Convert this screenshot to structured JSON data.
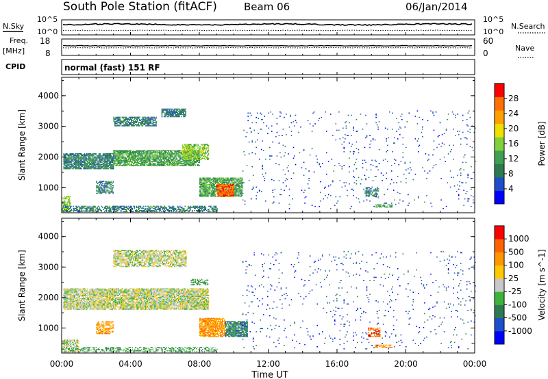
{
  "header": {
    "station": "South Pole Station (fitACF)",
    "beam": "Beam 06",
    "date": "06/Jan/2014"
  },
  "status_panels": {
    "nsky_label": "N.Sky",
    "nsky_ticks": [
      "10^5",
      "10^0"
    ],
    "nsearch_label": "N.Search",
    "nsearch_ticks": [
      "10^5",
      "10^0"
    ],
    "freq_label": "Freq.",
    "freq_unit": "[MHz]",
    "freq_ticks": [
      "18",
      "8"
    ],
    "nave_label": "Nave",
    "nave_ticks": [
      "60",
      "0"
    ],
    "cpid_label": "CPID",
    "cpid_text": "normal (fast) 151 RF"
  },
  "chart_data": [
    {
      "type": "heatmap",
      "name": "power",
      "ylabel": "Slant Range [km]",
      "yticks": [
        "4000",
        "3000",
        "2000",
        "1000"
      ],
      "ylim": [
        180,
        4600
      ],
      "xticks": [
        "00:00",
        "04:00",
        "08:00",
        "12:00",
        "16:00",
        "20:00",
        "00:00"
      ],
      "xlim_hours": [
        0,
        24
      ],
      "colorbar": {
        "label": "Power [dB]",
        "ticks": [
          "28",
          "24",
          "20",
          "16",
          "12",
          "8",
          "4"
        ],
        "range": [
          0,
          30
        ],
        "colors": [
          "#0000ff",
          "#1e4fc8",
          "#2e7a50",
          "#3ea050",
          "#7fd23c",
          "#f0e000",
          "#ffa000",
          "#ff7000",
          "#ff0000"
        ]
      },
      "regions": [
        {
          "t0": 0.0,
          "t1": 0.5,
          "r0": 200,
          "r1": 700,
          "level": 4,
          "density": 0.7
        },
        {
          "t0": 0.0,
          "t1": 9.0,
          "r0": 200,
          "r1": 400,
          "level": 2,
          "density": 0.6
        },
        {
          "t0": 0.1,
          "t1": 3.0,
          "r0": 1600,
          "r1": 2100,
          "level": 2,
          "density": 0.85
        },
        {
          "t0": 3.0,
          "t1": 8.0,
          "r0": 1700,
          "r1": 2200,
          "level": 3,
          "density": 0.85
        },
        {
          "t0": 7.0,
          "t1": 8.5,
          "r0": 1900,
          "r1": 2400,
          "level": 4,
          "density": 0.7
        },
        {
          "t0": 3.0,
          "t1": 5.5,
          "r0": 3000,
          "r1": 3300,
          "level": 2,
          "density": 0.7
        },
        {
          "t0": 5.8,
          "t1": 7.2,
          "r0": 3300,
          "r1": 3550,
          "level": 2,
          "density": 0.8
        },
        {
          "t0": 2.0,
          "t1": 3.0,
          "r0": 800,
          "r1": 1200,
          "level": 2,
          "density": 0.6
        },
        {
          "t0": 8.0,
          "t1": 10.5,
          "r0": 700,
          "r1": 1300,
          "level": 3,
          "density": 0.85
        },
        {
          "t0": 9.0,
          "t1": 10.0,
          "r0": 700,
          "r1": 1100,
          "level": 7,
          "density": 0.9
        },
        {
          "t0": 17.6,
          "t1": 18.4,
          "r0": 700,
          "r1": 1000,
          "level": 2,
          "density": 0.6
        },
        {
          "t0": 18.2,
          "t1": 19.2,
          "r0": 350,
          "r1": 450,
          "level": 3,
          "density": 0.7
        },
        {
          "t0": 10.5,
          "t1": 24.0,
          "r0": 300,
          "r1": 3500,
          "level": 1,
          "density": 0.025
        }
      ]
    },
    {
      "type": "heatmap",
      "name": "velocity",
      "ylabel": "Slant Range [km]",
      "yticks": [
        "4000",
        "3000",
        "2000",
        "1000"
      ],
      "ylim": [
        180,
        4600
      ],
      "xticks": [
        "00:00",
        "04:00",
        "08:00",
        "12:00",
        "16:00",
        "20:00",
        "00:00"
      ],
      "xlim_hours": [
        0,
        24
      ],
      "xlabel": "Time UT",
      "colorbar": {
        "label": "Velocity [m s^-1]",
        "ticks": [
          "1000",
          "500",
          "100",
          "25",
          "-25",
          "-100",
          "-500",
          "-1000"
        ],
        "colors": [
          "#0000ff",
          "#1e4fc8",
          "#2e7a50",
          "#3cb43c",
          "#c8c8c8",
          "#ffc800",
          "#ff9600",
          "#ff6400",
          "#ff0000"
        ]
      },
      "regions": [
        {
          "t0": 0.0,
          "t1": 1.0,
          "r0": 200,
          "r1": 600,
          "level": 4,
          "density": 0.7
        },
        {
          "t0": 0.0,
          "t1": 9.0,
          "r0": 200,
          "r1": 350,
          "level": 3,
          "density": 0.5
        },
        {
          "t0": 0.1,
          "t1": 8.5,
          "r0": 1600,
          "r1": 2300,
          "level": 4,
          "density": 0.85
        },
        {
          "t0": 3.0,
          "t1": 7.2,
          "r0": 3000,
          "r1": 3550,
          "level": 4,
          "density": 0.7
        },
        {
          "t0": 7.5,
          "t1": 8.5,
          "r0": 2400,
          "r1": 2600,
          "level": 3,
          "density": 0.7
        },
        {
          "t0": 2.0,
          "t1": 3.0,
          "r0": 800,
          "r1": 1200,
          "level": 6,
          "density": 0.6
        },
        {
          "t0": 8.0,
          "t1": 9.5,
          "r0": 700,
          "r1": 1300,
          "level": 6,
          "density": 0.85
        },
        {
          "t0": 9.5,
          "t1": 10.8,
          "r0": 700,
          "r1": 1200,
          "level": 2,
          "density": 0.85
        },
        {
          "t0": 17.8,
          "t1": 18.5,
          "r0": 700,
          "r1": 1000,
          "level": 7,
          "density": 0.6
        },
        {
          "t0": 18.2,
          "t1": 19.2,
          "r0": 350,
          "r1": 450,
          "level": 6,
          "density": 0.7
        },
        {
          "t0": 10.5,
          "t1": 24.0,
          "r0": 300,
          "r1": 3500,
          "level": 1,
          "density": 0.025
        }
      ]
    }
  ]
}
